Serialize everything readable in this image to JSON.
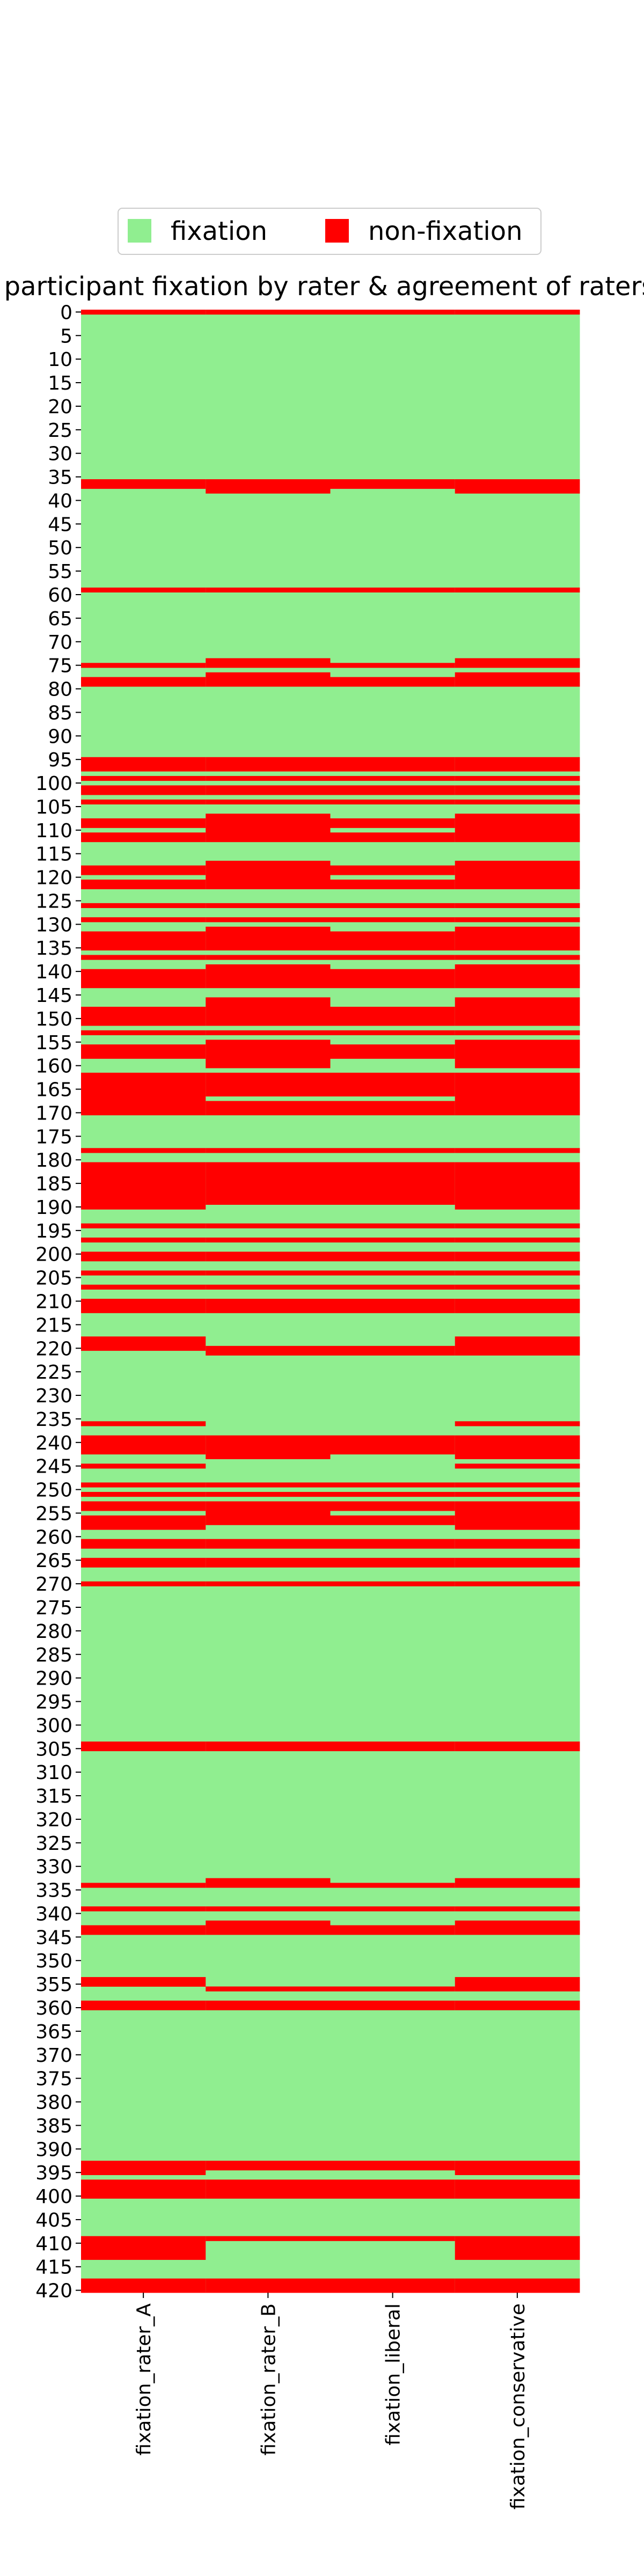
{
  "chart_data": {
    "type": "heatmap",
    "title": "participant fixation by rater & agreement of raters",
    "xlabel": "",
    "ylabel": "",
    "columns": [
      "fixation_rater_A",
      "fixation_rater_B",
      "fixation_liberal",
      "fixation_conservative"
    ],
    "row_count": 421,
    "y_tick_step": 5,
    "y_ticks": [
      0,
      5,
      10,
      15,
      20,
      25,
      30,
      35,
      40,
      45,
      50,
      55,
      60,
      65,
      70,
      75,
      80,
      85,
      90,
      95,
      100,
      105,
      110,
      115,
      120,
      125,
      130,
      135,
      140,
      145,
      150,
      155,
      160,
      165,
      170,
      175,
      180,
      185,
      190,
      195,
      200,
      205,
      210,
      215,
      220,
      225,
      230,
      235,
      240,
      245,
      250,
      255,
      260,
      265,
      270,
      275,
      280,
      285,
      290,
      295,
      300,
      305,
      310,
      315,
      320,
      325,
      330,
      335,
      340,
      345,
      350,
      355,
      360,
      365,
      370,
      375,
      380,
      385,
      390,
      395,
      400,
      405,
      410,
      415,
      420
    ],
    "categories": [
      "fixation",
      "non-fixation"
    ],
    "colors": {
      "fixation": "#90ee90",
      "non-fixation": "#ff0000"
    },
    "legend": {
      "placement": "top-center",
      "entries": [
        "fixation",
        "non-fixation"
      ]
    },
    "grid": false,
    "non_fixation_ranges": {
      "fixation_rater_A": [
        [
          0,
          0
        ],
        [
          36,
          37
        ],
        [
          59,
          59
        ],
        [
          75,
          75
        ],
        [
          78,
          79
        ],
        [
          95,
          97
        ],
        [
          99,
          99
        ],
        [
          101,
          102
        ],
        [
          104,
          104
        ],
        [
          108,
          109
        ],
        [
          111,
          112
        ],
        [
          118,
          119
        ],
        [
          121,
          122
        ],
        [
          126,
          126
        ],
        [
          129,
          129
        ],
        [
          132,
          135
        ],
        [
          137,
          137
        ],
        [
          140,
          143
        ],
        [
          148,
          151
        ],
        [
          153,
          153
        ],
        [
          156,
          158
        ],
        [
          162,
          170
        ],
        [
          178,
          178
        ],
        [
          181,
          190
        ],
        [
          194,
          194
        ],
        [
          197,
          197
        ],
        [
          200,
          201
        ],
        [
          204,
          204
        ],
        [
          207,
          207
        ],
        [
          210,
          212
        ],
        [
          218,
          220
        ],
        [
          236,
          236
        ],
        [
          239,
          242
        ],
        [
          245,
          245
        ],
        [
          249,
          249
        ],
        [
          251,
          251
        ],
        [
          253,
          254
        ],
        [
          256,
          258
        ],
        [
          261,
          262
        ],
        [
          265,
          266
        ],
        [
          270,
          270
        ],
        [
          304,
          305
        ],
        [
          334,
          334
        ],
        [
          339,
          339
        ],
        [
          343,
          344
        ],
        [
          354,
          355
        ],
        [
          359,
          360
        ],
        [
          393,
          395
        ],
        [
          397,
          400
        ],
        [
          409,
          413
        ],
        [
          418,
          420
        ]
      ],
      "fixation_rater_B": [
        [
          0,
          0
        ],
        [
          36,
          38
        ],
        [
          59,
          59
        ],
        [
          74,
          75
        ],
        [
          77,
          79
        ],
        [
          95,
          97
        ],
        [
          99,
          99
        ],
        [
          101,
          102
        ],
        [
          104,
          104
        ],
        [
          107,
          112
        ],
        [
          117,
          122
        ],
        [
          126,
          126
        ],
        [
          129,
          129
        ],
        [
          131,
          135
        ],
        [
          137,
          137
        ],
        [
          139,
          143
        ],
        [
          146,
          151
        ],
        [
          153,
          153
        ],
        [
          155,
          160
        ],
        [
          162,
          166
        ],
        [
          168,
          170
        ],
        [
          178,
          178
        ],
        [
          181,
          189
        ],
        [
          194,
          194
        ],
        [
          197,
          197
        ],
        [
          200,
          201
        ],
        [
          204,
          204
        ],
        [
          207,
          207
        ],
        [
          210,
          212
        ],
        [
          220,
          221
        ],
        [
          239,
          243
        ],
        [
          249,
          249
        ],
        [
          251,
          251
        ],
        [
          253,
          257
        ],
        [
          261,
          262
        ],
        [
          265,
          266
        ],
        [
          270,
          270
        ],
        [
          304,
          305
        ],
        [
          333,
          334
        ],
        [
          339,
          339
        ],
        [
          342,
          344
        ],
        [
          356,
          356
        ],
        [
          359,
          360
        ],
        [
          393,
          394
        ],
        [
          397,
          400
        ],
        [
          409,
          409
        ],
        [
          418,
          420
        ]
      ],
      "fixation_liberal": [
        [
          0,
          0
        ],
        [
          36,
          37
        ],
        [
          59,
          59
        ],
        [
          75,
          75
        ],
        [
          78,
          79
        ],
        [
          95,
          97
        ],
        [
          99,
          99
        ],
        [
          101,
          102
        ],
        [
          104,
          104
        ],
        [
          108,
          109
        ],
        [
          111,
          112
        ],
        [
          118,
          119
        ],
        [
          121,
          122
        ],
        [
          126,
          126
        ],
        [
          129,
          129
        ],
        [
          132,
          135
        ],
        [
          137,
          137
        ],
        [
          140,
          143
        ],
        [
          148,
          151
        ],
        [
          153,
          153
        ],
        [
          156,
          158
        ],
        [
          162,
          166
        ],
        [
          168,
          170
        ],
        [
          178,
          178
        ],
        [
          181,
          189
        ],
        [
          194,
          194
        ],
        [
          197,
          197
        ],
        [
          200,
          201
        ],
        [
          204,
          204
        ],
        [
          207,
          207
        ],
        [
          210,
          212
        ],
        [
          220,
          221
        ],
        [
          239,
          242
        ],
        [
          249,
          249
        ],
        [
          251,
          251
        ],
        [
          253,
          254
        ],
        [
          256,
          257
        ],
        [
          261,
          262
        ],
        [
          265,
          266
        ],
        [
          270,
          270
        ],
        [
          304,
          305
        ],
        [
          334,
          334
        ],
        [
          339,
          339
        ],
        [
          343,
          344
        ],
        [
          356,
          356
        ],
        [
          359,
          360
        ],
        [
          393,
          394
        ],
        [
          397,
          400
        ],
        [
          409,
          409
        ],
        [
          418,
          420
        ]
      ],
      "fixation_conservative": [
        [
          0,
          0
        ],
        [
          36,
          38
        ],
        [
          59,
          59
        ],
        [
          74,
          75
        ],
        [
          77,
          79
        ],
        [
          95,
          97
        ],
        [
          99,
          99
        ],
        [
          101,
          102
        ],
        [
          104,
          104
        ],
        [
          107,
          112
        ],
        [
          117,
          122
        ],
        [
          126,
          126
        ],
        [
          129,
          129
        ],
        [
          131,
          135
        ],
        [
          137,
          137
        ],
        [
          139,
          143
        ],
        [
          146,
          151
        ],
        [
          153,
          153
        ],
        [
          155,
          160
        ],
        [
          162,
          170
        ],
        [
          178,
          178
        ],
        [
          181,
          190
        ],
        [
          194,
          194
        ],
        [
          197,
          197
        ],
        [
          200,
          201
        ],
        [
          204,
          204
        ],
        [
          207,
          207
        ],
        [
          210,
          212
        ],
        [
          218,
          221
        ],
        [
          236,
          236
        ],
        [
          239,
          243
        ],
        [
          245,
          245
        ],
        [
          249,
          249
        ],
        [
          251,
          251
        ],
        [
          253,
          258
        ],
        [
          261,
          262
        ],
        [
          265,
          266
        ],
        [
          270,
          270
        ],
        [
          304,
          305
        ],
        [
          333,
          334
        ],
        [
          339,
          339
        ],
        [
          342,
          344
        ],
        [
          354,
          356
        ],
        [
          359,
          360
        ],
        [
          393,
          395
        ],
        [
          397,
          400
        ],
        [
          409,
          413
        ],
        [
          418,
          420
        ]
      ]
    }
  }
}
